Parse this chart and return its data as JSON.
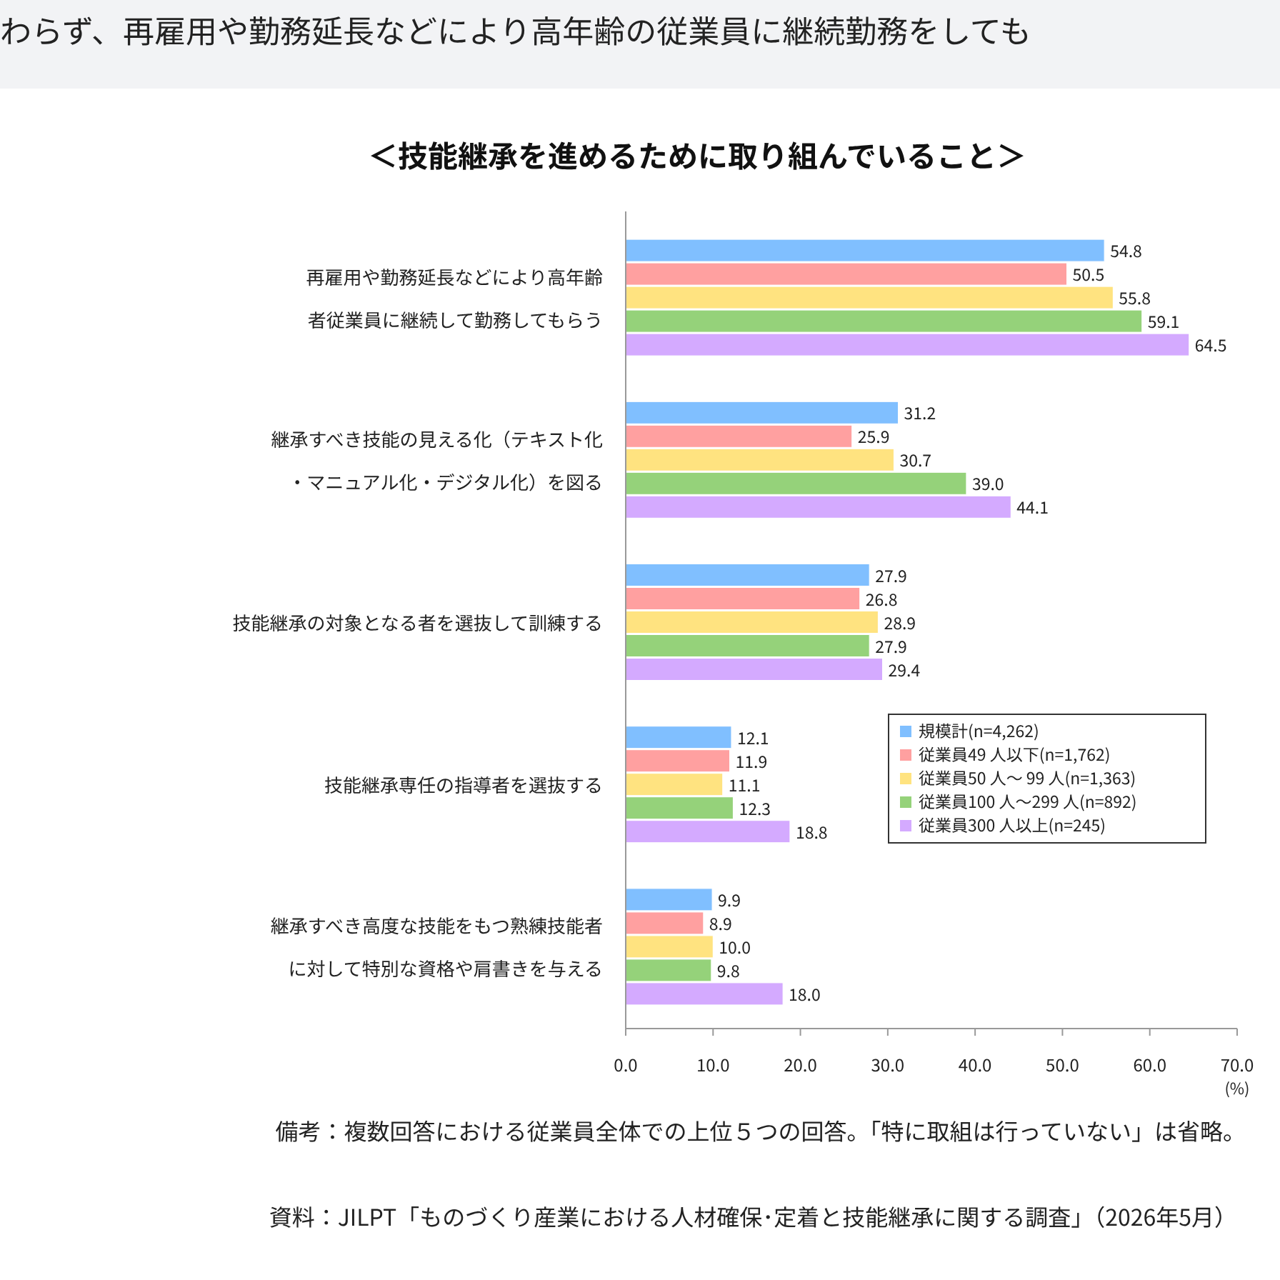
{
  "chart_data": {
    "type": "bar",
    "orientation": "horizontal",
    "title": "＜技能継承を進めるために取り組んでいること＞",
    "categories": [
      "再雇用や勤務延長などにより高年齢者従業員に継続して勤務してもらう",
      "継承すべき技能の見える化（テキスト化・マニュアル化・デジタル化）を図る",
      "技能継承の対象となる者を選抜して訓練する",
      "技能継承専任の指導者を選抜する",
      "継承すべき高度な技能をもつ熟練技能者に対して特別な資格や肩書きを与える"
    ],
    "series": [
      {
        "name": "規模計(n=4,262)",
        "color": "#80bfff",
        "values": [
          54.8,
          31.2,
          27.9,
          12.1,
          9.9
        ],
        "value_labels": [
          "54.8",
          "31.2",
          "27.9",
          "12.1",
          "9.9"
        ]
      },
      {
        "name": "従業員49 人以下(n=1,762)",
        "color": "#ffa0a0",
        "values": [
          50.5,
          25.9,
          26.8,
          11.9,
          8.9
        ],
        "value_labels": [
          "50.5",
          "25.9",
          "26.8",
          "11.9",
          "8.9"
        ]
      },
      {
        "name": "従業員50 人～ 99 人(n=1,363)",
        "color": "#ffe380",
        "values": [
          55.8,
          30.7,
          28.9,
          11.1,
          10.0
        ],
        "value_labels": [
          "55.8",
          "30.7",
          "28.9",
          "11.1",
          "10.0"
        ]
      },
      {
        "name": "従業員100 人～299 人(n=892)",
        "color": "#95d27a",
        "values": [
          59.1,
          39.0,
          27.9,
          12.3,
          9.8
        ],
        "value_labels": [
          "59.1",
          "39.0",
          "27.9",
          "12.3",
          "9.8"
        ]
      },
      {
        "name": "従業員300 人以上(n=245)",
        "color": "#d4aaff",
        "values": [
          64.5,
          44.1,
          29.4,
          18.8,
          18.0
        ],
        "value_labels": [
          "64.5",
          "44.1",
          "29.4",
          "18.8",
          "18.0"
        ]
      }
    ],
    "xlim": [
      0,
      70
    ],
    "xticks": [
      {
        "value": 0,
        "label": "0.0"
      },
      {
        "value": 10,
        "label": "10.0"
      },
      {
        "value": 20,
        "label": "20.0"
      },
      {
        "value": 30,
        "label": "30.0"
      },
      {
        "value": 40,
        "label": "40.0"
      },
      {
        "value": 50,
        "label": "50.0"
      },
      {
        "value": 60,
        "label": "60.0"
      },
      {
        "value": 70,
        "label": "70.0"
      }
    ],
    "xlabel": "(%)",
    "legend": "right",
    "grid": false,
    "annotations": [
      "わらず、再雇用や勤務延長などにより高年齢の従業員に継続勤務をしても",
      "備考：複数回答における従業員全体での上位５つの回答。「特に取組は行っていない」は省略。",
      "資料：JILPT「ものづくり産業における人材確保･定着と技能継承に関する調査」（2026年5月）"
    ]
  }
}
